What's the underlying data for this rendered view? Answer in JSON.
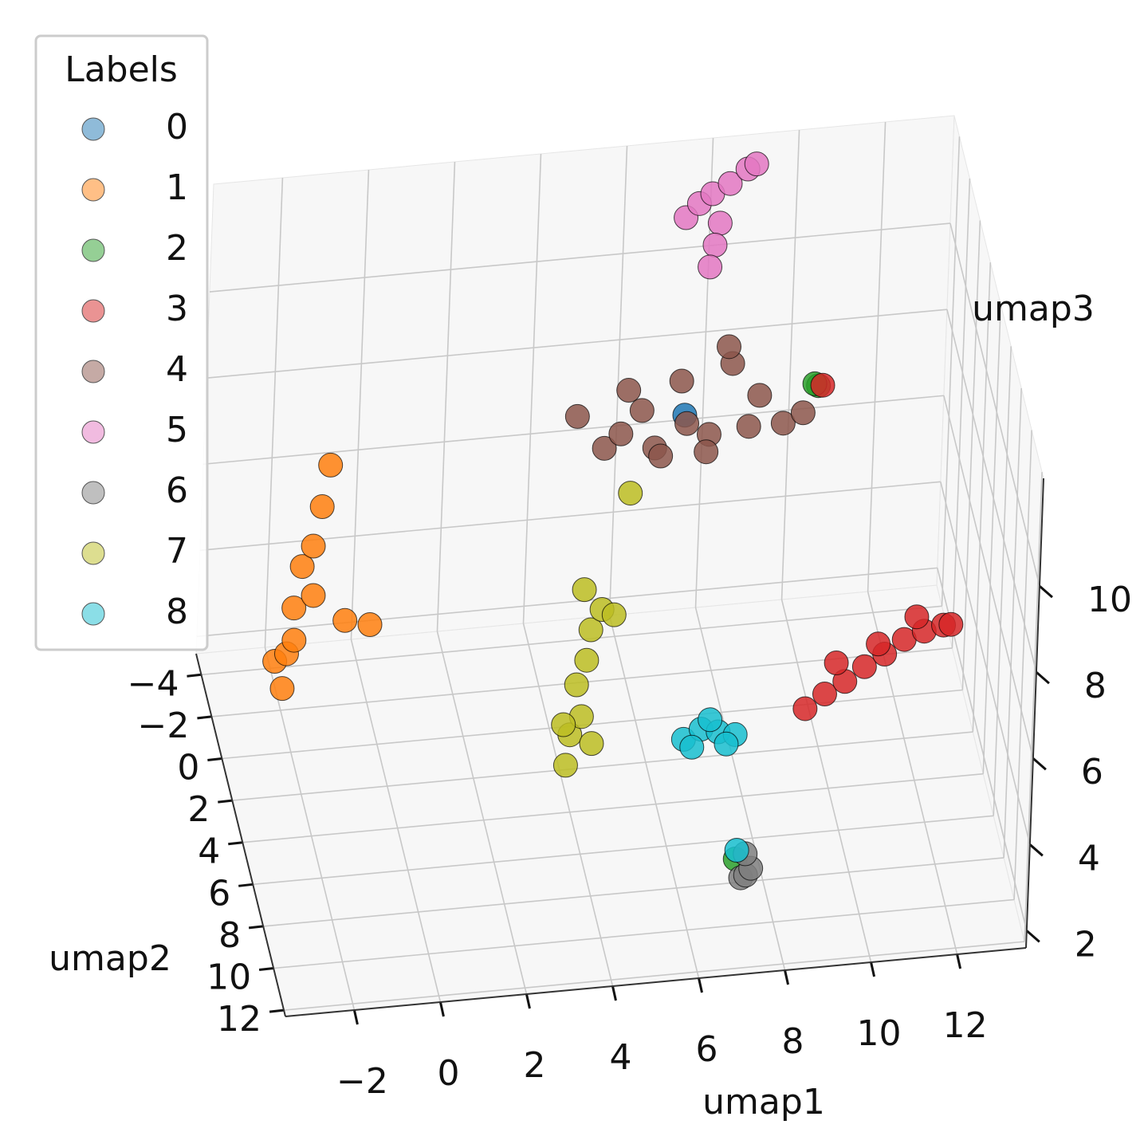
{
  "chart_data": {
    "type": "scatter3d",
    "xlabel": "umap1",
    "ylabel": "umap2",
    "zlabel": "umap3",
    "xlim": [
      -3.6,
      13.6
    ],
    "ylim": [
      -5,
      12.3
    ],
    "zlim": [
      1.6,
      12.5
    ],
    "xticks": [
      {
        "value": -2,
        "label": "−2"
      },
      0,
      2,
      4,
      6,
      8,
      10,
      12
    ],
    "yticks": [
      {
        "value": -4,
        "label": "−4"
      },
      {
        "value": -2,
        "label": "−2"
      },
      0,
      2,
      4,
      6,
      8,
      10,
      12
    ],
    "zticks": [
      2,
      4,
      6,
      8,
      10
    ],
    "grid": true,
    "legend": {
      "title": "Labels",
      "position": "upper left"
    },
    "series": [
      {
        "name": "0",
        "color": "#1f77b4",
        "x": [
          6.5
        ],
        "y": [
          2.8
        ],
        "z": [
          10
        ]
      },
      {
        "name": "1",
        "color": "#ff7f0e",
        "x": [
          -2.8,
          -2.6,
          -2.4,
          -2.2,
          -2.0,
          -1.8,
          -1.6,
          -2.0,
          -1.2,
          -0.6,
          -2.7,
          -2.3
        ],
        "y": [
          2.5,
          3.0,
          2.5,
          2.2,
          2.5,
          2.3,
          2.0,
          2.8,
          2.5,
          2.4,
          3.2,
          2.0
        ],
        "z": [
          5.0,
          5.4,
          6.2,
          7.0,
          7.6,
          8.4,
          9.2,
          6.6,
          5.8,
          5.6,
          4.7,
          5.2
        ]
      },
      {
        "name": "2",
        "color": "#2ca02c",
        "x": [
          9.7,
          9.6,
          7.3
        ],
        "y": [
          2.0,
          2.1,
          8.3
        ],
        "z": [
          10,
          10.1,
          2.3
        ]
      },
      {
        "name": "3",
        "color": "#d62728",
        "x": [
          8.7,
          9.2,
          9.7,
          10.2,
          10.7,
          11.2,
          11.7,
          12.2,
          12.4,
          10.5,
          11.5,
          9.5,
          9.8
        ],
        "y": [
          9.0,
          8.6,
          8.3,
          7.9,
          7.6,
          7.2,
          6.9,
          6.5,
          6.3,
          7.9,
          7.0,
          8.2,
          2.0
        ],
        "z": [
          6,
          6.1,
          6.2,
          6.3,
          6.4,
          6.5,
          6.5,
          6.4,
          6.3,
          6.8,
          6.9,
          6.6,
          10
        ]
      },
      {
        "name": "4",
        "color": "#8c564b",
        "x": [
          4.0,
          4.6,
          5.2,
          5.8,
          6.4,
          7.0,
          7.6,
          8.2,
          8.8,
          9.2,
          5.0,
          6.0,
          7.0,
          8.0,
          6.5,
          7.5,
          5.5
        ],
        "y": [
          2.8,
          3.2,
          2.6,
          3.0,
          2.8,
          3.4,
          2.6,
          3.0,
          2.8,
          3.2,
          3.0,
          2.6,
          3.0,
          2.8,
          3.2,
          2.6,
          2.8
        ],
        "z": [
          10.2,
          9.6,
          10.6,
          9.4,
          10.8,
          9.8,
          11.0,
          10.4,
          9.6,
          10.0,
          9.8,
          9.0,
          9.2,
          9.6,
          10.0,
          11.4,
          10.2
        ]
      },
      {
        "name": "5",
        "color": "#e377c2",
        "x": [
          7.3,
          7.6,
          7.9,
          8.3,
          8.7,
          8.9,
          8.1,
          8.0,
          7.9
        ],
        "y": [
          -4,
          -4,
          -4,
          -4,
          -4,
          -4,
          -4,
          -4,
          -4
        ],
        "z": [
          11.2,
          11.5,
          11.7,
          11.9,
          12.2,
          12.3,
          11.0,
          10.5,
          10.0
        ]
      },
      {
        "name": "6",
        "color": "#7f7f7f",
        "x": [
          7.4,
          7.5,
          7.6,
          7.5
        ],
        "y": [
          8.6,
          8.7,
          8.8,
          8.5
        ],
        "z": [
          2.0,
          2.1,
          2.3,
          2.5
        ]
      },
      {
        "name": "7",
        "color": "#bcbd22",
        "x": [
          3.5,
          3.6,
          3.8,
          3.7,
          3.9,
          4.0,
          4.2,
          3.8,
          4.5,
          3.4,
          4.1,
          5.3
        ],
        "y": [
          6.6,
          6.4,
          6.8,
          6.5,
          6.6,
          6.4,
          6.7,
          6.5,
          6.6,
          6.7,
          6.5,
          2.8
        ],
        "z": [
          4.0,
          4.6,
          5.2,
          5.8,
          6.4,
          7.0,
          7.6,
          8.0,
          7.4,
          5.0,
          4.4,
          8.3
        ]
      },
      {
        "name": "8",
        "color": "#17becf",
        "x": [
          6.6,
          7.0,
          7.4,
          7.8,
          7.2,
          6.8,
          7.6,
          7.3
        ],
        "y": [
          3.9,
          3.9,
          3.9,
          3.9,
          3.9,
          3.9,
          3.9,
          8.5
        ],
        "z": [
          3.0,
          3.2,
          3.1,
          3.0,
          3.4,
          2.8,
          2.8,
          2.6
        ]
      }
    ]
  }
}
